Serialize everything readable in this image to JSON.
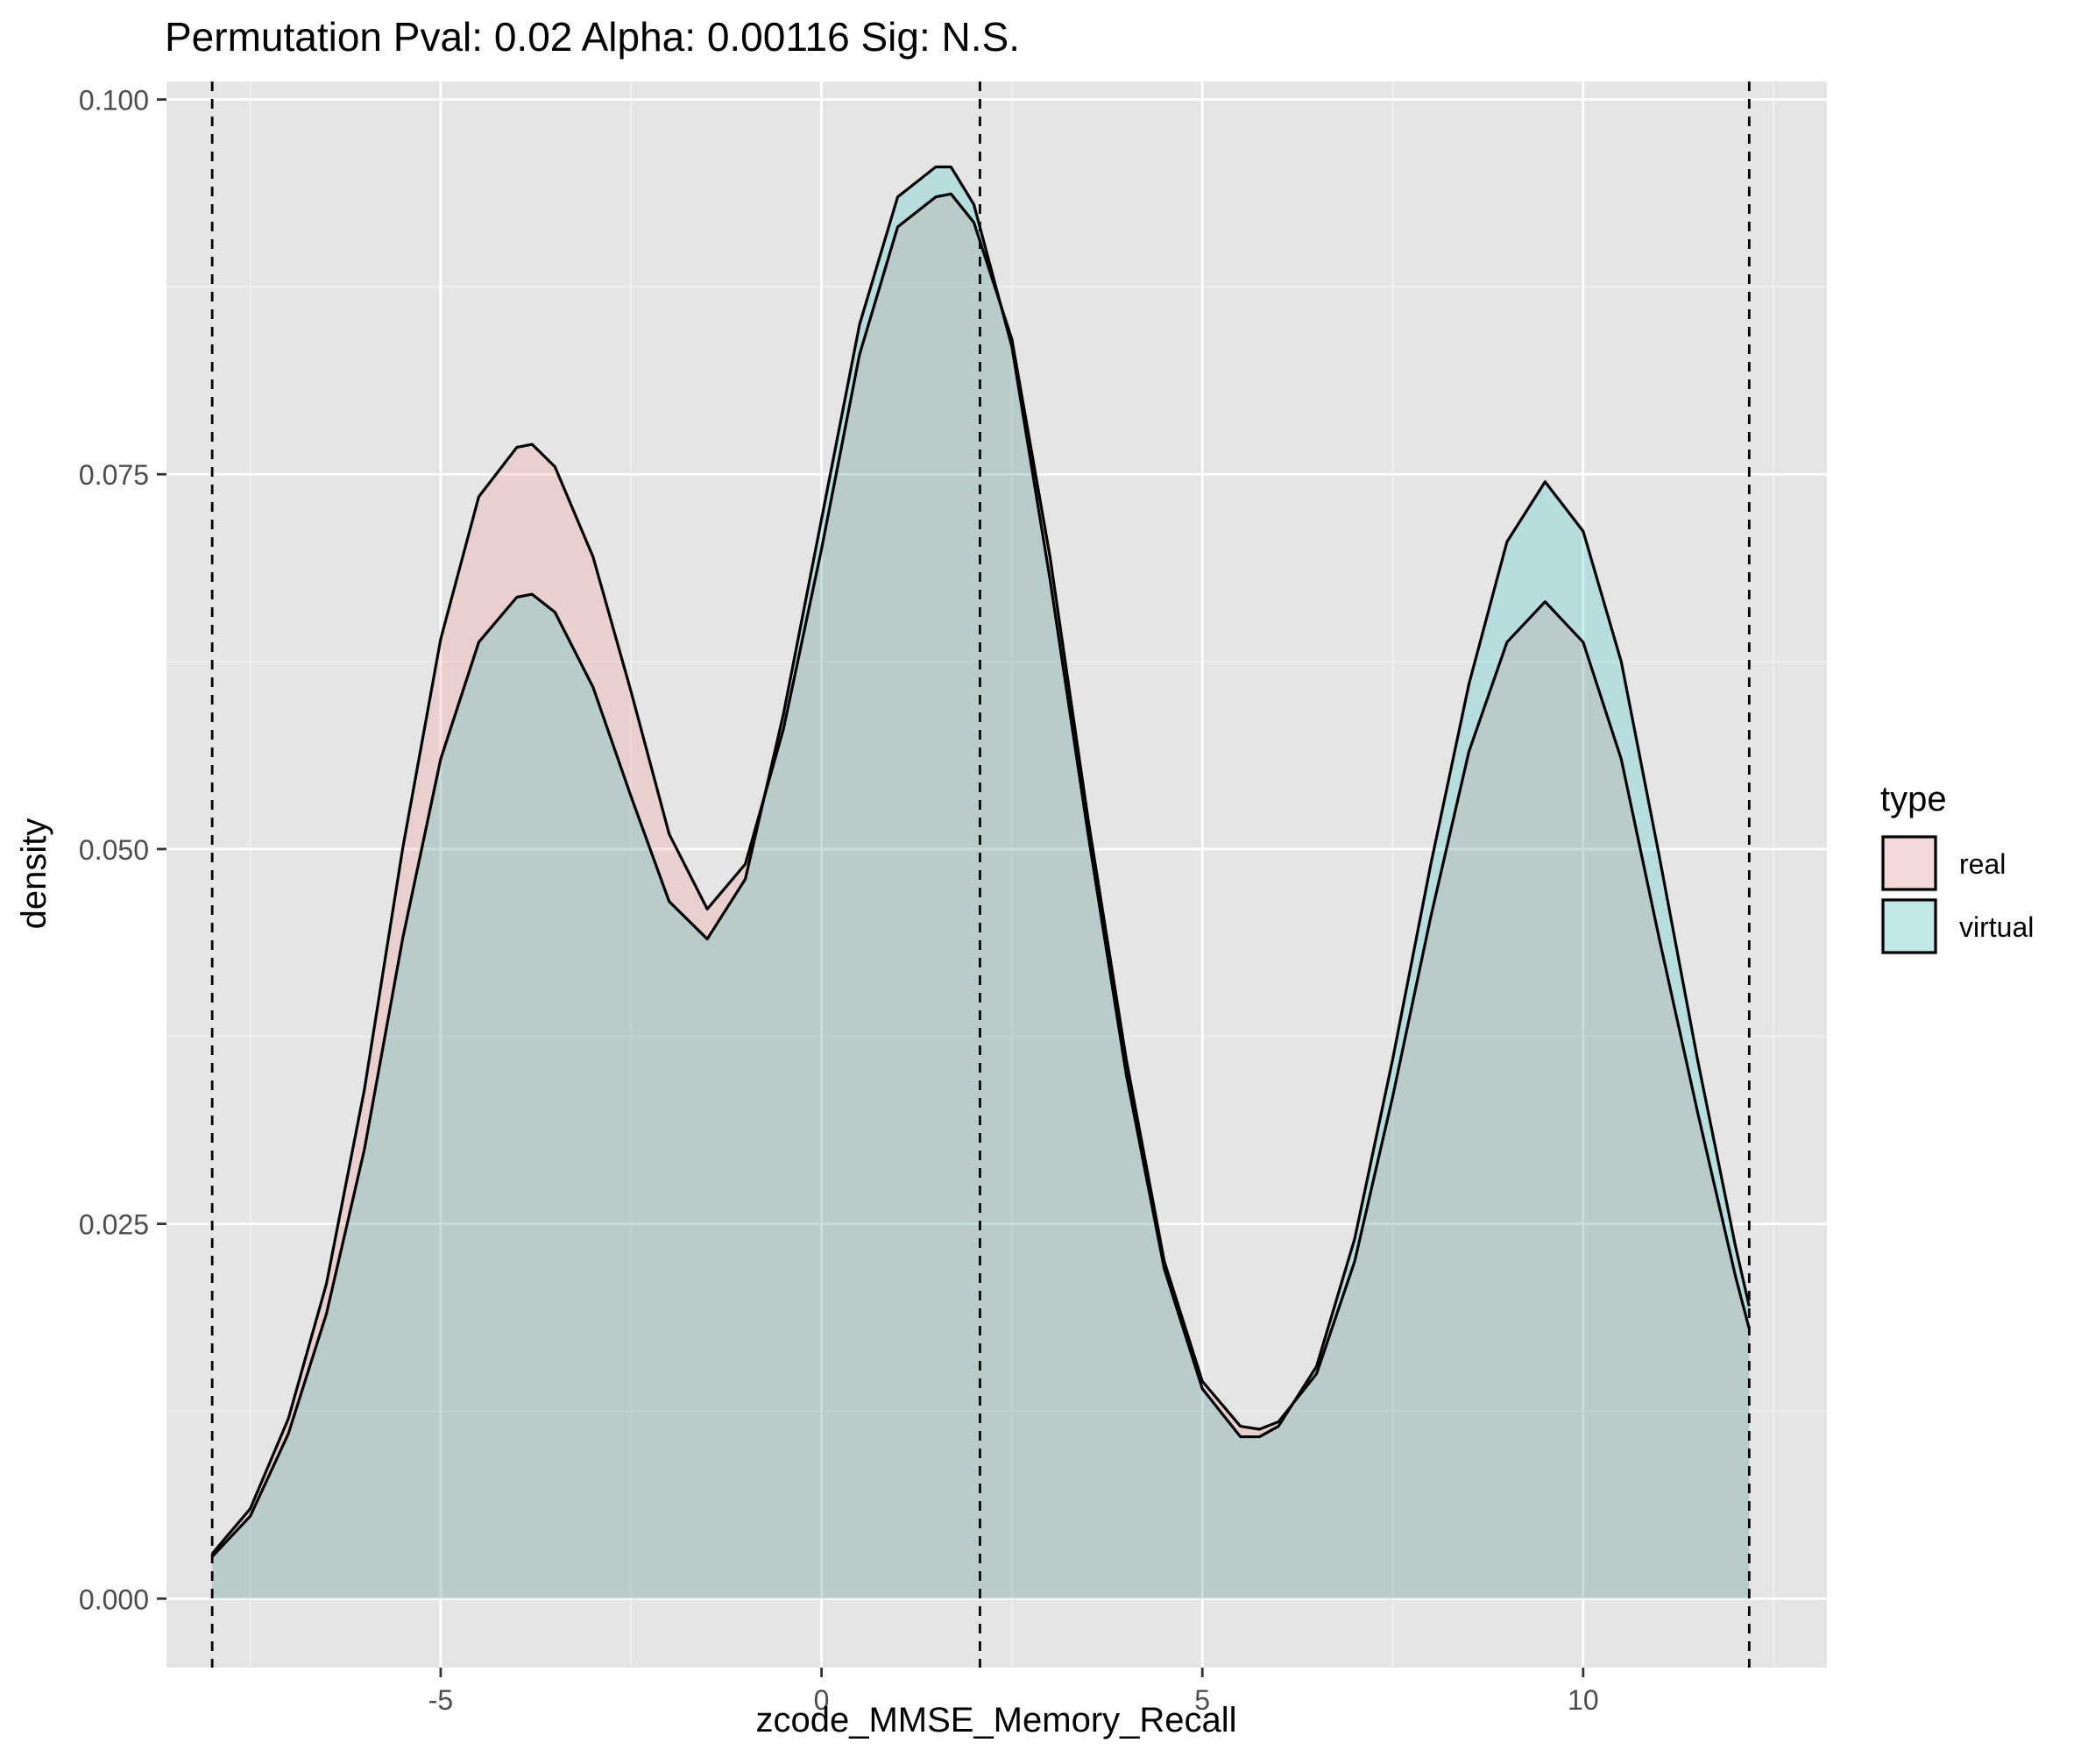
{
  "chart_data": {
    "type": "area",
    "title": "Permutation Pval: 0.02 Alpha: 0.00116 Sig: N.S.",
    "xlabel": "zcode_MMSE_Memory_Recall",
    "ylabel": "density",
    "xlim": [
      -8.6,
      13.2
    ],
    "ylim": [
      -0.0046,
      0.1012
    ],
    "x_ticks": [
      -5,
      0,
      5,
      10
    ],
    "x_tick_labels": [
      "-5",
      "0",
      "5",
      "10"
    ],
    "y_ticks": [
      0.0,
      0.025,
      0.05,
      0.075,
      0.1
    ],
    "y_tick_labels": [
      "0.000",
      "0.025",
      "0.050",
      "0.075",
      "0.100"
    ],
    "grid": true,
    "legend": {
      "title": "type",
      "position": "right"
    },
    "vlines": [
      -8,
      2.08,
      12.18
    ],
    "series": [
      {
        "name": "real",
        "color": "#F8766D",
        "x": [
          -8,
          -7.5,
          -7,
          -6.5,
          -6,
          -5.5,
          -5,
          -4.5,
          -4,
          -3.8,
          -3.5,
          -3,
          -2.5,
          -2,
          -1.5,
          -1,
          -0.5,
          0,
          0.5,
          1,
          1.5,
          1.7,
          2,
          2.5,
          3,
          3.5,
          4,
          4.5,
          5,
          5.5,
          5.75,
          6,
          6.5,
          7,
          7.5,
          8,
          8.5,
          9,
          9.5,
          10,
          10.5,
          11,
          11.5,
          12,
          12.18
        ],
        "y": [
          0.003,
          0.006,
          0.012,
          0.021,
          0.034,
          0.05,
          0.064,
          0.0735,
          0.0768,
          0.077,
          0.0755,
          0.0695,
          0.0605,
          0.051,
          0.046,
          0.049,
          0.058,
          0.07,
          0.083,
          0.0915,
          0.0935,
          0.0937,
          0.0918,
          0.084,
          0.0695,
          0.052,
          0.036,
          0.0225,
          0.0145,
          0.0115,
          0.0113,
          0.0118,
          0.015,
          0.0225,
          0.0335,
          0.0455,
          0.0565,
          0.0638,
          0.0665,
          0.0638,
          0.056,
          0.044,
          0.0325,
          0.0215,
          0.018
        ]
      },
      {
        "name": "virtual",
        "color": "#00BFC4",
        "x": [
          -8,
          -7.5,
          -7,
          -6.5,
          -6,
          -5.5,
          -5,
          -4.5,
          -4,
          -3.8,
          -3.5,
          -3,
          -2.5,
          -2,
          -1.5,
          -1,
          -0.5,
          0,
          0.5,
          1,
          1.5,
          1.7,
          2,
          2.5,
          3,
          3.5,
          4,
          4.5,
          5,
          5.5,
          5.75,
          6,
          6.5,
          7,
          7.5,
          8,
          8.5,
          9,
          9.5,
          10,
          10.5,
          11,
          11.5,
          12,
          12.18
        ],
        "y": [
          0.0028,
          0.0055,
          0.011,
          0.019,
          0.03,
          0.044,
          0.056,
          0.0638,
          0.0668,
          0.067,
          0.0658,
          0.0608,
          0.0535,
          0.0465,
          0.044,
          0.048,
          0.059,
          0.072,
          0.085,
          0.0935,
          0.0955,
          0.0955,
          0.093,
          0.0835,
          0.068,
          0.051,
          0.035,
          0.022,
          0.014,
          0.0108,
          0.0108,
          0.0115,
          0.0155,
          0.024,
          0.036,
          0.049,
          0.061,
          0.0705,
          0.0745,
          0.0712,
          0.0625,
          0.0495,
          0.036,
          0.0235,
          0.0195
        ]
      }
    ]
  }
}
